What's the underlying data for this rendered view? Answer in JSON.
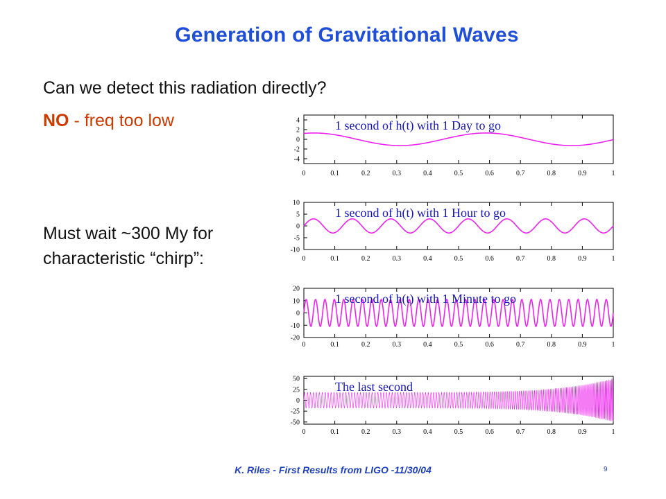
{
  "slide": {
    "title": "Generation of Gravitational Waves",
    "question": "Can we detect this radiation directly?",
    "answer_bold": "NO",
    "answer_rest": " - freq too low",
    "wait_line1": "Must wait ~300 My for",
    "wait_line2": "characteristic “chirp”:",
    "footer": "K. Riles - First Results from LIGO -11/30/04",
    "page_number": "9"
  },
  "colors": {
    "title": "#1f4fd6",
    "answer": "#cc3a00",
    "curve": "#ee22ee",
    "plot_title": "#1414b4"
  },
  "chart_data": [
    {
      "type": "line",
      "title": "1 second of h(t) with 1 Day to go",
      "xlim": [
        0,
        1
      ],
      "ylim": [
        -5,
        5
      ],
      "xticks": [
        "0",
        "0.1",
        "0.2",
        "0.3",
        "0.4",
        "0.5",
        "0.6",
        "0.7",
        "0.8",
        "0.9",
        "1"
      ],
      "yticks": [
        4,
        2,
        0,
        -2,
        -4
      ],
      "amplitude": 1.3,
      "cycles_per_second": 1.8
    },
    {
      "type": "line",
      "title": "1 second of h(t) with 1 Hour to go",
      "xlim": [
        0,
        1
      ],
      "ylim": [
        -10,
        10
      ],
      "xticks": [
        "0",
        "0.1",
        "0.2",
        "0.3",
        "0.4",
        "0.5",
        "0.6",
        "0.7",
        "0.8",
        "0.9",
        "1"
      ],
      "yticks": [
        10,
        5,
        0,
        -5,
        -10
      ],
      "amplitude": 3,
      "cycles_per_second": 8
    },
    {
      "type": "line",
      "title": "1 second of h(t) with 1 Minute to go",
      "xlim": [
        0,
        1
      ],
      "ylim": [
        -20,
        20
      ],
      "xticks": [
        "0",
        "0.1",
        "0.2",
        "0.3",
        "0.4",
        "0.5",
        "0.6",
        "0.7",
        "0.8",
        "0.9",
        "1"
      ],
      "yticks": [
        20,
        10,
        0,
        -10,
        -20
      ],
      "amplitude": 11,
      "cycles_per_second": 33
    },
    {
      "type": "line",
      "title": "The last second",
      "xlim": [
        0,
        1
      ],
      "ylim": [
        -55,
        55
      ],
      "xticks": [
        "0",
        "0.1",
        "0.2",
        "0.3",
        "0.4",
        "0.5",
        "0.6",
        "0.7",
        "0.8",
        "0.9",
        "1"
      ],
      "yticks": [
        50,
        25,
        0,
        -25,
        -50
      ],
      "amplitude_start": 18,
      "amplitude_end": 50,
      "chirp": true
    }
  ]
}
